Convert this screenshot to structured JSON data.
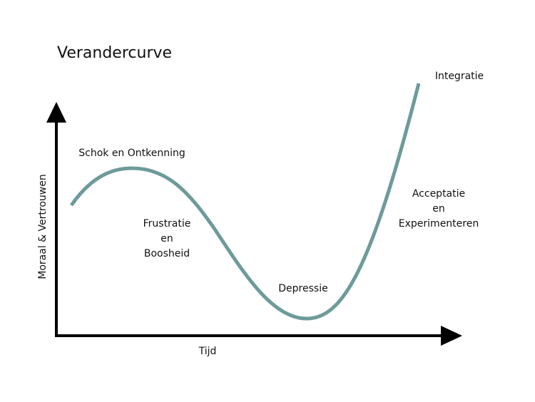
{
  "title": "Verandercurve",
  "axes": {
    "y_label": "Moraal & Vertrouwen",
    "x_label": "Tijd"
  },
  "phases": [
    {
      "lines": [
        "Schok en Ontkenning"
      ]
    },
    {
      "lines": [
        "Frustratie",
        "en",
        "Boosheid"
      ]
    },
    {
      "lines": [
        "Depressie"
      ]
    },
    {
      "lines": [
        "Acceptatie",
        "en",
        "Experimenteren"
      ]
    },
    {
      "lines": [
        "Integratie"
      ]
    }
  ]
}
